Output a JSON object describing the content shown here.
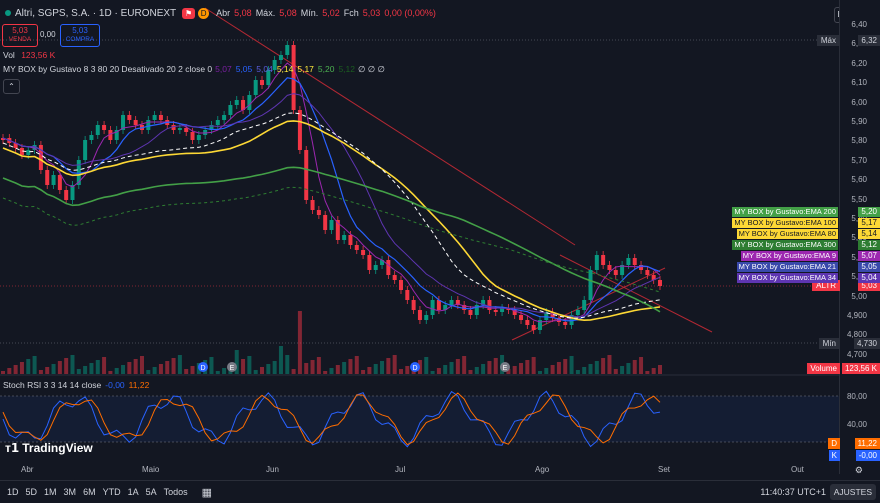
{
  "header": {
    "title": "Altri, SGPS, S.A. · 1D · EURONEXT",
    "abr_label": "Abr",
    "abr": "5,08",
    "max_label": "Máx.",
    "max": "5,08",
    "min_label": "Mín.",
    "min": "5,02",
    "fch_label": "Fch",
    "fch": "5,03",
    "change": "0,00 (0,00%)",
    "currency": "EUR"
  },
  "trade": {
    "sell_price": "5,03",
    "sell_label": "VENDA",
    "spread": "0,00",
    "buy_price": "5,03",
    "buy_label": "COMPRA"
  },
  "volume_legend": {
    "label": "Vol",
    "value": "123,56 K"
  },
  "indicator_legend": {
    "name": "MY BOX by Gustavo 8 3 80 20 Desativado 20 2 close 0",
    "values": [
      {
        "v": "5,07",
        "color": "#7b1fa2"
      },
      {
        "v": "5,05",
        "color": "#2962ff"
      },
      {
        "v": "5,04",
        "color": "#5b5fe0"
      },
      {
        "v": "5,14",
        "color": "#ffeb3b"
      },
      {
        "v": "5,17",
        "color": "#ffeb3b"
      },
      {
        "v": "5,20",
        "color": "#4caf50"
      },
      {
        "v": "5,12",
        "color": "#1b5e20"
      }
    ],
    "tail": "∅ ∅ ∅"
  },
  "price_axis": {
    "ticks": [
      "6,40",
      "6,30",
      "6,20",
      "6,10",
      "6,00",
      "5,90",
      "5,80",
      "5,70",
      "5,60",
      "5,50",
      "5,40",
      "5,30",
      "5,20",
      "5,10",
      "5,00",
      "4,900",
      "4,800",
      "4,700"
    ],
    "max_label": "Máx",
    "max_value": "6,32",
    "min_label": "Mín",
    "min_value": "4,730",
    "altr_label": "ALTR",
    "altr_value": "5,03"
  },
  "ema_legend": [
    {
      "label": "MY BOX by Gustavo:EMA 200",
      "value": "5,20",
      "color": "#43a047"
    },
    {
      "label": "MY BOX by Gustavo:EMA 100",
      "value": "5,17",
      "color": "#fdd835"
    },
    {
      "label": "MY BOX by Gustavo:EMA 80",
      "value": "5,14",
      "color": "#fdd835"
    },
    {
      "label": "MY BOX by Gustavo:EMA 300",
      "value": "5,12",
      "color": "#2e7d32"
    },
    {
      "label": "MY BOX by Gustavo:EMA 9",
      "value": "5,07",
      "color": "#9c27b0"
    },
    {
      "label": "MY BOX by Gustavo:EMA 21",
      "value": "5,05",
      "color": "#3949ab"
    },
    {
      "label": "MY BOX by Gustavo:EMA 34",
      "value": "5,04",
      "color": "#5e35b1"
    }
  ],
  "volume_tag": {
    "label": "Volume",
    "value": "123,56 K"
  },
  "stoch": {
    "title": "Stoch RSI 3 3 14 14 close",
    "k": "-0,00",
    "d": "11,22",
    "ticks": [
      "80,00",
      "40,00"
    ],
    "d_label": "D",
    "k_label": "K"
  },
  "x_axis": [
    "Abr",
    "Maio",
    "Jun",
    "Jul",
    "Ago",
    "Set",
    "Out"
  ],
  "event_markers": [
    "D",
    "E",
    "D",
    "E"
  ],
  "logo": "TradingView",
  "bottom": {
    "timeframes": [
      "1D",
      "5D",
      "1M",
      "3M",
      "6M",
      "YTD",
      "1A",
      "5A",
      "Todos"
    ],
    "time": "11:40:37 UTC+1",
    "settings": "AJUSTES"
  }
}
